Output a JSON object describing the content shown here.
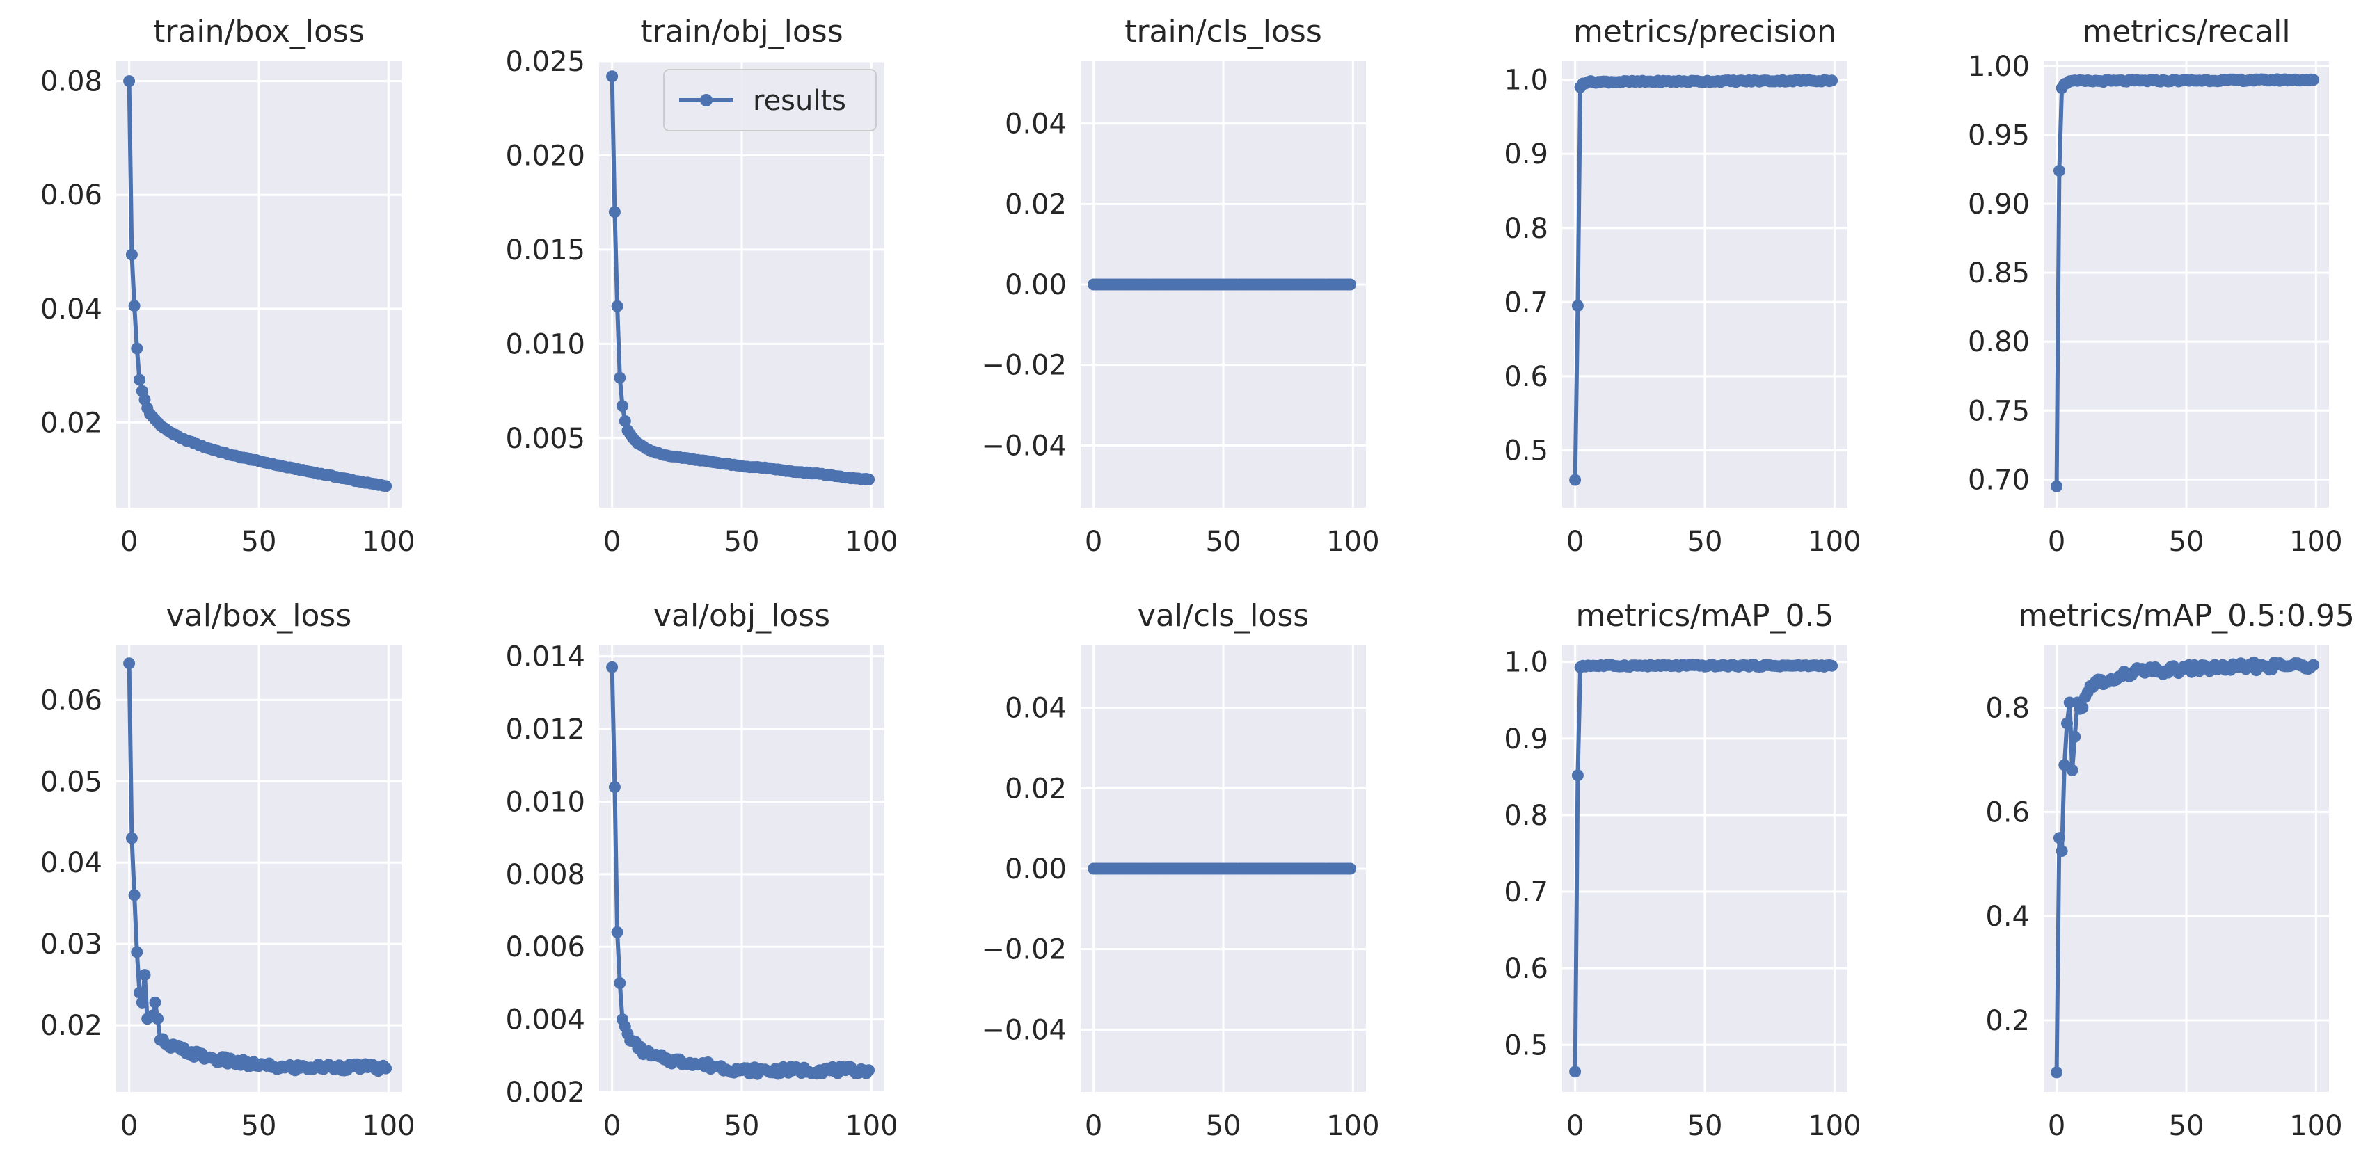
{
  "figure": {
    "series_name": "results",
    "marker_color": "#4c72b0"
  },
  "chart_data": [
    {
      "type": "line",
      "title": "train/box_loss",
      "xlabel": "",
      "ylabel": "",
      "xlim": [
        -5,
        105
      ],
      "ylim": [
        0.005,
        0.0835
      ],
      "xticks": [
        0,
        50,
        100
      ],
      "yticks": [
        0.02,
        0.04,
        0.06,
        0.08
      ],
      "ytick_labels": [
        "0.02",
        "0.04",
        "0.06",
        "0.08"
      ],
      "series": [
        {
          "name": "results",
          "x_end": 99,
          "curve": "decay",
          "knots": [
            [
              0,
              0.08
            ],
            [
              1,
              0.0495
            ],
            [
              2,
              0.0405
            ],
            [
              3,
              0.033
            ],
            [
              4,
              0.0275
            ],
            [
              5,
              0.0255
            ],
            [
              6,
              0.024
            ],
            [
              7,
              0.0225
            ],
            [
              8,
              0.0215
            ],
            [
              10,
              0.0205
            ],
            [
              12,
              0.0195
            ],
            [
              15,
              0.0185
            ],
            [
              20,
              0.0172
            ],
            [
              30,
              0.0155
            ],
            [
              40,
              0.0142
            ],
            [
              50,
              0.0132
            ],
            [
              60,
              0.0122
            ],
            [
              70,
              0.0113
            ],
            [
              80,
              0.0104
            ],
            [
              90,
              0.0095
            ],
            [
              99,
              0.0088
            ]
          ]
        }
      ]
    },
    {
      "type": "line",
      "title": "train/obj_loss",
      "xlabel": "",
      "ylabel": "",
      "xlim": [
        -5,
        105
      ],
      "ylim": [
        0.0013,
        0.025
      ],
      "xticks": [
        0,
        50,
        100
      ],
      "yticks": [
        0.005,
        0.01,
        0.015,
        0.02,
        0.025
      ],
      "ytick_labels": [
        "0.005",
        "0.010",
        "0.015",
        "0.020",
        "0.025"
      ],
      "legend": {
        "entries": [
          "results"
        ],
        "position": "top-right"
      },
      "series": [
        {
          "name": "results",
          "x_end": 99,
          "curve": "decay",
          "knots": [
            [
              0,
              0.0242
            ],
            [
              1,
              0.017
            ],
            [
              2,
              0.012
            ],
            [
              3,
              0.0082
            ],
            [
              4,
              0.0067
            ],
            [
              5,
              0.0059
            ],
            [
              6,
              0.0054
            ],
            [
              8,
              0.005
            ],
            [
              10,
              0.0047
            ],
            [
              15,
              0.0043
            ],
            [
              20,
              0.0041
            ],
            [
              30,
              0.0039
            ],
            [
              40,
              0.0037
            ],
            [
              50,
              0.0035
            ],
            [
              60,
              0.0034
            ],
            [
              70,
              0.0032
            ],
            [
              80,
              0.0031
            ],
            [
              90,
              0.0029
            ],
            [
              99,
              0.0028
            ]
          ]
        }
      ]
    },
    {
      "type": "line",
      "title": "train/cls_loss",
      "xlabel": "",
      "ylabel": "",
      "xlim": [
        -5,
        105
      ],
      "ylim": [
        -0.0555,
        0.0555
      ],
      "xticks": [
        0,
        50,
        100
      ],
      "yticks": [
        -0.04,
        -0.02,
        0,
        0.02,
        0.04
      ],
      "ytick_labels": [
        "−0.04",
        "−0.02",
        "0.00",
        "0.02",
        "0.04"
      ],
      "series": [
        {
          "name": "results",
          "x_end": 99,
          "curve": "constant",
          "knots": [
            [
              0,
              0
            ],
            [
              99,
              0
            ]
          ]
        }
      ]
    },
    {
      "type": "line",
      "title": "metrics/precision",
      "xlabel": "",
      "ylabel": "",
      "xlim": [
        -5,
        105
      ],
      "ylim": [
        0.4225,
        1.025
      ],
      "xticks": [
        0,
        50,
        100
      ],
      "yticks": [
        0.5,
        0.6,
        0.7,
        0.8,
        0.9,
        1.0
      ],
      "ytick_labels": [
        "0.5",
        "0.6",
        "0.7",
        "0.8",
        "0.9",
        "1.0"
      ],
      "series": [
        {
          "name": "results",
          "x_end": 99,
          "curve": "plateau",
          "knots": [
            [
              0,
              0.46
            ],
            [
              1,
              0.695
            ],
            [
              2,
              0.99
            ],
            [
              3,
              0.995
            ],
            [
              5,
              0.997
            ],
            [
              99,
              0.999
            ]
          ]
        }
      ]
    },
    {
      "type": "line",
      "title": "metrics/recall",
      "xlabel": "",
      "ylabel": "",
      "xlim": [
        -5,
        105
      ],
      "ylim": [
        0.6795,
        1.0035
      ],
      "xticks": [
        0,
        50,
        100
      ],
      "yticks": [
        0.7,
        0.75,
        0.8,
        0.85,
        0.9,
        0.95,
        1.0
      ],
      "ytick_labels": [
        "0.70",
        "0.75",
        "0.80",
        "0.85",
        "0.90",
        "0.95",
        "1.00"
      ],
      "series": [
        {
          "name": "results",
          "x_end": 99,
          "curve": "plateau",
          "knots": [
            [
              0,
              0.695
            ],
            [
              1,
              0.924
            ],
            [
              2,
              0.984
            ],
            [
              3,
              0.987
            ],
            [
              5,
              0.989
            ],
            [
              99,
              0.99
            ]
          ]
        }
      ]
    },
    {
      "type": "line",
      "title": "val/box_loss",
      "xlabel": "",
      "ylabel": "",
      "xlim": [
        -5,
        105
      ],
      "ylim": [
        0.0118,
        0.0667
      ],
      "xticks": [
        0,
        50,
        100
      ],
      "yticks": [
        0.02,
        0.03,
        0.04,
        0.05,
        0.06
      ],
      "ytick_labels": [
        "0.02",
        "0.03",
        "0.04",
        "0.05",
        "0.06"
      ],
      "series": [
        {
          "name": "results",
          "x_end": 99,
          "curve": "noisy-decay",
          "knots": [
            [
              0,
              0.0645
            ],
            [
              1,
              0.043
            ],
            [
              2,
              0.036
            ],
            [
              3,
              0.029
            ],
            [
              4,
              0.024
            ],
            [
              5,
              0.0228
            ],
            [
              6,
              0.0262
            ],
            [
              7,
              0.0208
            ],
            [
              8,
              0.021
            ],
            [
              9,
              0.0212
            ],
            [
              10,
              0.0228
            ],
            [
              12,
              0.0182
            ],
            [
              15,
              0.0175
            ],
            [
              20,
              0.017
            ],
            [
              30,
              0.016
            ],
            [
              40,
              0.0155
            ],
            [
              50,
              0.015
            ],
            [
              60,
              0.0148
            ],
            [
              70,
              0.0148
            ],
            [
              80,
              0.0149
            ],
            [
              90,
              0.0148
            ],
            [
              99,
              0.0147
            ]
          ]
        }
      ]
    },
    {
      "type": "line",
      "title": "val/obj_loss",
      "xlabel": "",
      "ylabel": "",
      "xlim": [
        -5,
        105
      ],
      "ylim": [
        0.002,
        0.0143
      ],
      "xticks": [
        0,
        50,
        100
      ],
      "yticks": [
        0.002,
        0.004,
        0.006,
        0.008,
        0.01,
        0.012,
        0.014
      ],
      "ytick_labels": [
        "0.002",
        "0.004",
        "0.006",
        "0.008",
        "0.010",
        "0.012",
        "0.014"
      ],
      "series": [
        {
          "name": "results",
          "x_end": 99,
          "curve": "noisy-decay",
          "knots": [
            [
              0,
              0.0137
            ],
            [
              1,
              0.0104
            ],
            [
              2,
              0.0064
            ],
            [
              3,
              0.005
            ],
            [
              4,
              0.004
            ],
            [
              5,
              0.0038
            ],
            [
              6,
              0.0036
            ],
            [
              8,
              0.0034
            ],
            [
              10,
              0.0032
            ],
            [
              15,
              0.003
            ],
            [
              20,
              0.0029
            ],
            [
              30,
              0.0028
            ],
            [
              40,
              0.0027
            ],
            [
              50,
              0.0026
            ],
            [
              60,
              0.00258
            ],
            [
              70,
              0.0026
            ],
            [
              80,
              0.0026
            ],
            [
              90,
              0.0026
            ],
            [
              99,
              0.0026
            ]
          ]
        }
      ]
    },
    {
      "type": "line",
      "title": "val/cls_loss",
      "xlabel": "",
      "ylabel": "",
      "xlim": [
        -5,
        105
      ],
      "ylim": [
        -0.0555,
        0.0555
      ],
      "xticks": [
        0,
        50,
        100
      ],
      "yticks": [
        -0.04,
        -0.02,
        0,
        0.02,
        0.04
      ],
      "ytick_labels": [
        "−0.04",
        "−0.02",
        "0.00",
        "0.02",
        "0.04"
      ],
      "series": [
        {
          "name": "results",
          "x_end": 99,
          "curve": "constant",
          "knots": [
            [
              0,
              0
            ],
            [
              99,
              0
            ]
          ]
        }
      ]
    },
    {
      "type": "line",
      "title": "metrics/mAP_0.5",
      "xlabel": "",
      "ylabel": "",
      "xlim": [
        -5,
        105
      ],
      "ylim": [
        0.4385,
        1.0215
      ],
      "xticks": [
        0,
        50,
        100
      ],
      "yticks": [
        0.5,
        0.6,
        0.7,
        0.8,
        0.9,
        1.0
      ],
      "ytick_labels": [
        "0.5",
        "0.6",
        "0.7",
        "0.8",
        "0.9",
        "1.0"
      ],
      "series": [
        {
          "name": "results",
          "x_end": 99,
          "curve": "plateau",
          "knots": [
            [
              0,
              0.465
            ],
            [
              1,
              0.852
            ],
            [
              2,
              0.993
            ],
            [
              3,
              0.995
            ],
            [
              99,
              0.995
            ]
          ]
        }
      ]
    },
    {
      "type": "line",
      "title": "metrics/mAP_0.5:0.95",
      "xlabel": "",
      "ylabel": "",
      "xlim": [
        -5,
        105
      ],
      "ylim": [
        0.0625,
        0.9195
      ],
      "xticks": [
        0,
        50,
        100
      ],
      "yticks": [
        0.2,
        0.4,
        0.6,
        0.8
      ],
      "ytick_labels": [
        "0.2",
        "0.4",
        "0.6",
        "0.8"
      ],
      "series": [
        {
          "name": "results",
          "x_end": 99,
          "curve": "noisy-rise",
          "knots": [
            [
              0,
              0.1
            ],
            [
              1,
              0.55
            ],
            [
              2,
              0.525
            ],
            [
              3,
              0.69
            ],
            [
              4,
              0.77
            ],
            [
              5,
              0.81
            ],
            [
              6,
              0.68
            ],
            [
              8,
              0.81
            ],
            [
              10,
              0.8
            ],
            [
              12,
              0.83
            ],
            [
              15,
              0.85
            ],
            [
              20,
              0.85
            ],
            [
              25,
              0.86
            ],
            [
              30,
              0.87
            ],
            [
              40,
              0.87
            ],
            [
              50,
              0.875
            ],
            [
              60,
              0.876
            ],
            [
              70,
              0.878
            ],
            [
              80,
              0.88
            ],
            [
              90,
              0.88
            ],
            [
              99,
              0.882
            ]
          ]
        }
      ]
    }
  ]
}
